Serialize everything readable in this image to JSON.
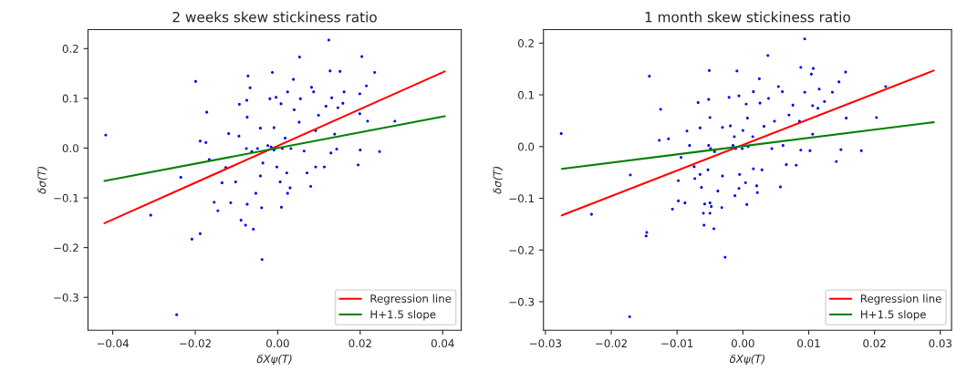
{
  "chart_data": [
    {
      "type": "scatter",
      "title": "2 weeks skew stickiness ratio",
      "xlabel": "δXψ(T)",
      "ylabel": "δσ(T)",
      "xlim": [
        -0.046,
        0.0445
      ],
      "ylim": [
        -0.366,
        0.238
      ],
      "xticks": [
        {
          "value": -0.04,
          "label": "−0.04"
        },
        {
          "value": -0.02,
          "label": "−0.02"
        },
        {
          "value": 0,
          "label": "0.00"
        },
        {
          "value": 0.02,
          "label": "0.02"
        },
        {
          "value": 0.04,
          "label": "0.04"
        }
      ],
      "yticks": [
        {
          "value": -0.3,
          "label": "−0.3"
        },
        {
          "value": -0.2,
          "label": "−0.2"
        },
        {
          "value": -0.1,
          "label": "−0.1"
        },
        {
          "value": 0,
          "label": "0.0"
        },
        {
          "value": 0.1,
          "label": "0.1"
        },
        {
          "value": 0.2,
          "label": "0.2"
        }
      ],
      "grid": false,
      "legend": "bottom right",
      "series": [
        {
          "color": "#0000ff",
          "marker": "circle",
          "x": [
            -0.0417,
            -0.0199,
            -0.0172,
            -0.0188,
            -0.0174,
            -0.0235,
            -0.0308,
            -0.0208,
            -0.0188,
            -0.0245,
            -0.0166,
            -0.0154,
            -0.0145,
            -0.0135,
            -0.0119,
            -0.0126,
            -0.0093,
            -0.0075,
            -0.0072,
            -0.0067,
            -0.0074,
            -0.0094,
            -0.0089,
            -0.0078,
            -0.0059,
            -0.0074,
            -0.0114,
            -0.0102,
            -0.0053,
            -0.0039,
            -0.0038,
            -0.0042,
            -0.0042,
            -0.0036,
            -0.0049,
            -0.0063,
            -0.0076,
            -0.0024,
            -0.0019,
            -0.0013,
            -0.0004,
            0.0008,
            -0.0009,
            -0.0016,
            -0.0009,
            -0.0002,
            0.0006,
            0.0009,
            0.0024,
            0.003,
            0.0022,
            0.0018,
            0.0011,
            0.0032,
            0.0038,
            0.0024,
            0.004,
            0.0053,
            0.0055,
            0.0052,
            0.0064,
            0.008,
            0.0071,
            0.0082,
            0.0087,
            0.0092,
            0.0092,
            0.0099,
            0.0113,
            0.0117,
            0.0124,
            0.0127,
            0.0129,
            0.0131,
            0.0138,
            0.0146,
            0.0151,
            0.0158,
            0.0161,
            0.0143,
            0.0195,
            0.0199,
            0.02,
            0.0199,
            0.0204,
            0.0215,
            0.0218,
            0.0235,
            0.0247,
            0.0284
          ],
          "values": [
            0.026,
            0.134,
            0.072,
            0.014,
            0.011,
            -0.059,
            -0.135,
            -0.183,
            -0.172,
            -0.335,
            -0.023,
            -0.109,
            -0.126,
            -0.07,
            0.029,
            -0.039,
            0.088,
            0.096,
            0.145,
            0.121,
            0.062,
            0.024,
            -0.145,
            -0.155,
            -0.163,
            -0.113,
            -0.11,
            -0.068,
            -0.091,
            -0.12,
            -0.224,
            -0.056,
            0.04,
            -0.03,
            -0.001,
            -0.007,
            -0.001,
            0.005,
            0.099,
            0.152,
            0.102,
            0.089,
            0.041,
            0.002,
            -0.004,
            -0.038,
            -0.068,
            -0.119,
            -0.091,
            -0.08,
            -0.05,
            0.02,
            -0.001,
            -0.001,
            0.138,
            0.113,
            0.077,
            0.183,
            0.099,
            0.052,
            -0.006,
            -0.077,
            -0.05,
            0.122,
            0.113,
            0.035,
            -0.038,
            0.066,
            -0.038,
            0.084,
            0.217,
            0.155,
            -0.01,
            0.101,
            0.028,
            0.081,
            0.154,
            0.09,
            0.113,
            -0.002,
            -0.034,
            0.109,
            -0.004,
            0.069,
            0.184,
            0.125,
            0.054,
            0.152,
            -0.007,
            0.054
          ]
        },
        {
          "type": "line",
          "name": "Regression line",
          "color": "#ff0000",
          "line_style": "solid",
          "x": [
            -0.042,
            0.0405
          ],
          "values": [
            -0.151,
            0.154
          ]
        },
        {
          "type": "line",
          "name": "H+1.5 slope",
          "color": "#008000",
          "line_style": "solid",
          "x": [
            -0.042,
            0.0405
          ],
          "values": [
            -0.066,
            0.064
          ]
        }
      ]
    },
    {
      "type": "scatter",
      "title": "1 month skew stickiness ratio",
      "xlabel": "δXψ(T)",
      "ylabel": "δσ(T)",
      "xlim": [
        -0.0303,
        0.0317
      ],
      "ylim": [
        -0.355,
        0.226
      ],
      "xticks": [
        {
          "value": -0.03,
          "label": "−0.03"
        },
        {
          "value": -0.02,
          "label": "−0.02"
        },
        {
          "value": -0.01,
          "label": "−0.01"
        },
        {
          "value": 0,
          "label": "0.00"
        },
        {
          "value": 0.01,
          "label": "0.01"
        },
        {
          "value": 0.02,
          "label": "0.02"
        },
        {
          "value": 0.03,
          "label": "0.03"
        }
      ],
      "yticks": [
        {
          "value": -0.3,
          "label": "−0.3"
        },
        {
          "value": -0.2,
          "label": "−0.2"
        },
        {
          "value": -0.1,
          "label": "−0.1"
        },
        {
          "value": 0,
          "label": "0.0"
        },
        {
          "value": 0.1,
          "label": "0.1"
        },
        {
          "value": 0.2,
          "label": "0.2"
        }
      ],
      "grid": false,
      "legend": "bottom right",
      "series": [
        {
          "color": "#0000ff",
          "marker": "circle",
          "x": [
            -0.0276,
            -0.023,
            -0.0171,
            -0.0172,
            -0.0147,
            -0.0146,
            -0.0142,
            -0.0125,
            -0.0127,
            -0.0113,
            -0.0098,
            -0.0098,
            -0.0107,
            -0.0088,
            -0.0094,
            -0.0085,
            -0.0081,
            -0.0074,
            -0.0073,
            -0.0068,
            -0.0065,
            -0.0065,
            -0.0063,
            -0.006,
            -0.0059,
            -0.0058,
            -0.0052,
            -0.0051,
            -0.005,
            -0.005,
            -0.005,
            -0.0048,
            -0.0044,
            -0.0053,
            -0.0049,
            -0.0052,
            -0.0043,
            -0.0038,
            -0.0032,
            -0.0031,
            -0.0031,
            -0.0027,
            -0.0021,
            -0.0019,
            -0.0013,
            -0.0015,
            -0.0011,
            -0.0012,
            -0.0009,
            -0.0006,
            -0.0005,
            -0.0006,
            -0.0001,
            0.0,
            0.0005,
            0.0006,
            0.0004,
            0.0007,
            0.0008,
            0.0015,
            0.0016,
            0.0016,
            0.0021,
            0.0022,
            0.0025,
            0.0026,
            0.0029,
            0.0032,
            0.0038,
            0.0039,
            0.0044,
            0.0048,
            0.0054,
            0.0057,
            0.006,
            0.0061,
            0.0066,
            0.007,
            0.0076,
            0.0081,
            0.0086,
            0.0088,
            0.0088,
            0.0094,
            0.0094,
            0.0102,
            0.0104,
            0.0106,
            0.0107,
            0.0106,
            0.0114,
            0.0116,
            0.0124,
            0.0136,
            0.0142,
            0.0146,
            0.0149,
            0.0156,
            0.0157,
            0.018,
            0.0203,
            0.0217
          ],
          "values": [
            0.025,
            -0.131,
            -0.055,
            -0.329,
            -0.173,
            -0.166,
            0.136,
            0.072,
            0.012,
            0.015,
            -0.066,
            -0.105,
            -0.121,
            -0.109,
            -0.021,
            0.03,
            0.002,
            -0.039,
            -0.062,
            0.085,
            0.036,
            -0.054,
            -0.079,
            -0.129,
            -0.152,
            -0.111,
            0.091,
            0.147,
            0.056,
            -0.109,
            -0.129,
            -0.116,
            -0.159,
            -0.045,
            -0.004,
            0.002,
            -0.01,
            -0.086,
            -0.118,
            -0.057,
            0.037,
            -0.214,
            0.095,
            0.04,
            0.019,
            0.002,
            -0.004,
            -0.095,
            0.146,
            0.098,
            -0.054,
            -0.081,
            -0.004,
            0.031,
            0.082,
            -0.112,
            -0.07,
            0.055,
            0.0,
            0.019,
            0.106,
            -0.043,
            -0.076,
            -0.089,
            0.131,
            0.084,
            -0.045,
            0.039,
            0.176,
            0.093,
            -0.004,
            0.049,
            0.116,
            -0.078,
            0.106,
            0.002,
            -0.035,
            0.061,
            0.08,
            -0.036,
            0.049,
            -0.007,
            0.153,
            0.208,
            0.105,
            -0.008,
            0.14,
            0.079,
            0.151,
            0.024,
            0.074,
            0.111,
            0.087,
            0.105,
            -0.029,
            0.125,
            -0.006,
            0.144,
            0.055,
            -0.008,
            0.056,
            0.116
          ]
        },
        {
          "type": "line",
          "name": "Regression line",
          "color": "#ff0000",
          "line_style": "solid",
          "x": [
            -0.0275,
            0.029
          ],
          "values": [
            -0.133,
            0.147
          ]
        },
        {
          "type": "line",
          "name": "H+1.5 slope",
          "color": "#008000",
          "line_style": "solid",
          "x": [
            -0.0275,
            0.029
          ],
          "values": [
            -0.043,
            0.047
          ]
        }
      ]
    }
  ]
}
